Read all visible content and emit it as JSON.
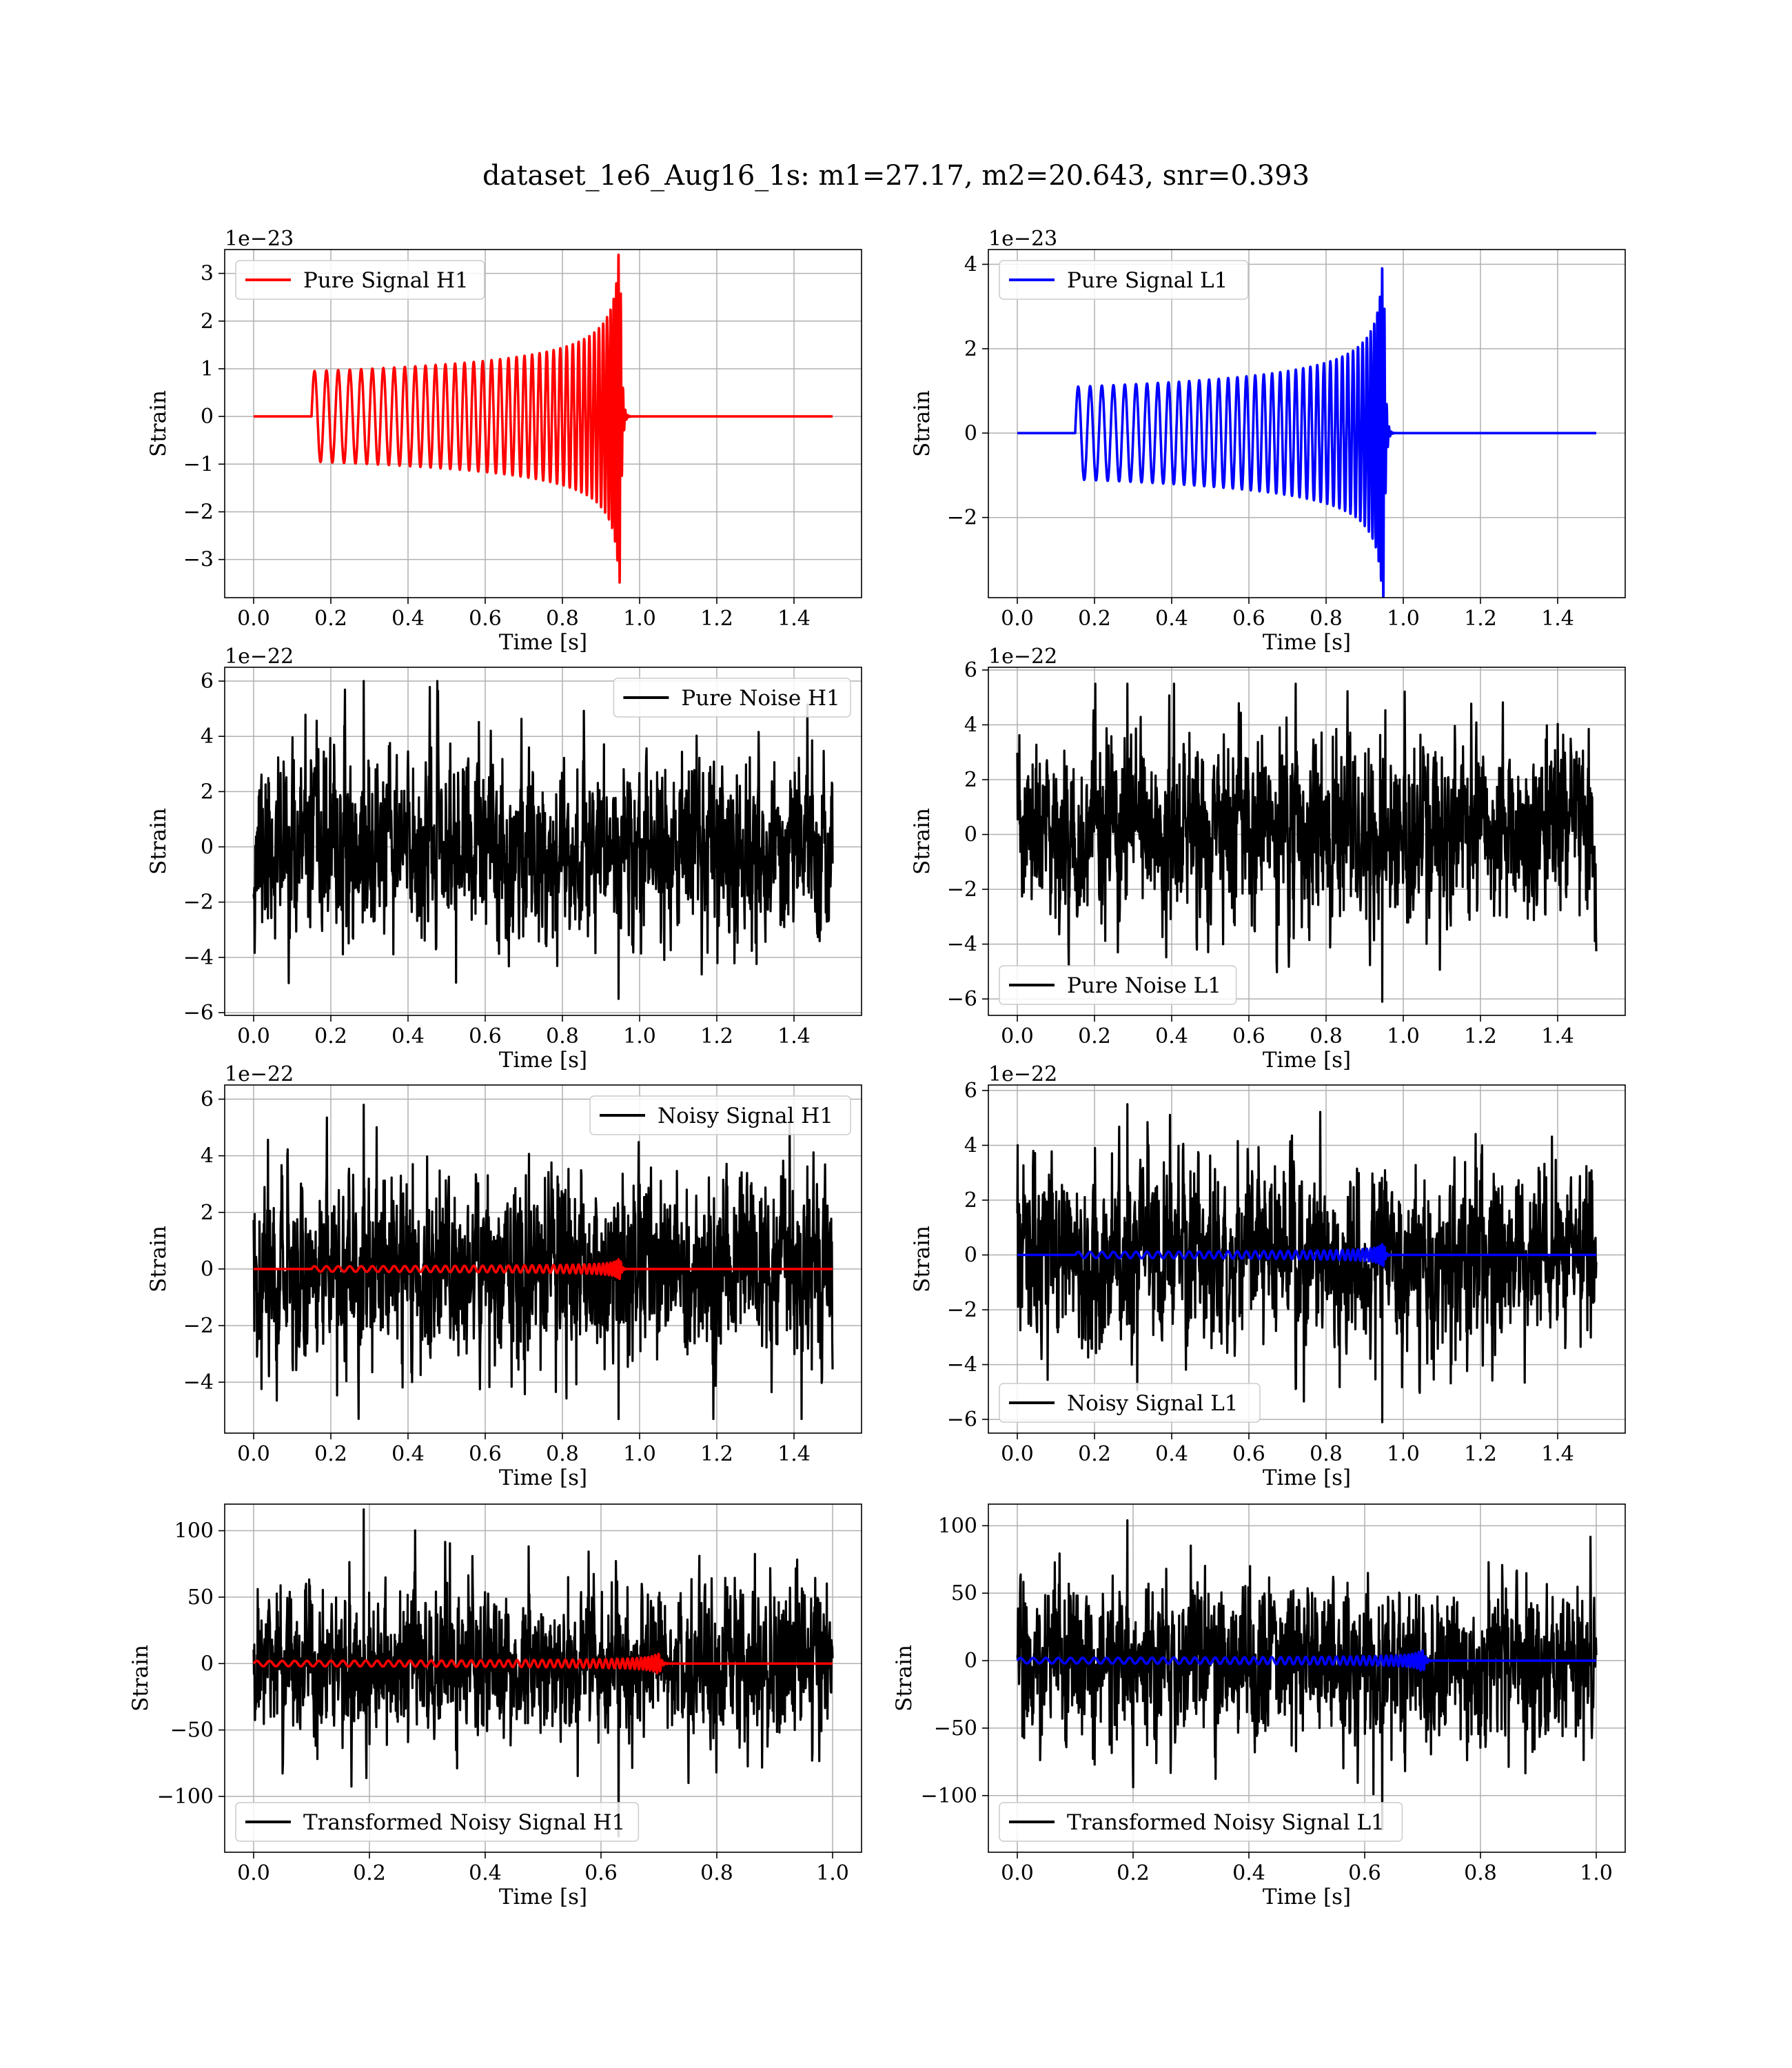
{
  "figure_title": "dataset_1e6_Aug16_1s: m1=27.17, m2=20.643, snr=0.393",
  "colors": {
    "signal_h1": "#ff0000",
    "signal_l1": "#0000ff",
    "noise": "#000000",
    "grid": "#b0b0b0"
  },
  "chart_data": [
    {
      "type": "line",
      "id": "pure-signal-h1",
      "xlabel": "Time [s]",
      "ylabel": "Strain",
      "offset_text": "1e−23",
      "xlim": [
        -0.075,
        1.575
      ],
      "ylim": [
        -3.8,
        3.5
      ],
      "xticks": [
        0.0,
        0.2,
        0.4,
        0.6,
        0.8,
        1.0,
        1.2,
        1.4
      ],
      "xtick_labels": [
        "0.0",
        "0.2",
        "0.4",
        "0.6",
        "0.8",
        "1.0",
        "1.2",
        "1.4"
      ],
      "yticks": [
        -3,
        -2,
        -1,
        0,
        1,
        2,
        3
      ],
      "ytick_labels": [
        "−3",
        "−2",
        "−1",
        "0",
        "1",
        "2",
        "3"
      ],
      "legend_position": "top-left",
      "grid": true,
      "series": [
        {
          "name": "Pure Signal H1",
          "kind": "chirp",
          "color_key": "signal_h1",
          "t_start": 0.15,
          "t_merge": 0.95,
          "t_end": 1.5,
          "amp_start": 0.95,
          "amp_peak": 3.5,
          "freq_start": 32,
          "freq_peak": 170
        }
      ]
    },
    {
      "type": "line",
      "id": "pure-signal-l1",
      "xlabel": "Time [s]",
      "ylabel": "Strain",
      "offset_text": "1e−23",
      "xlim": [
        -0.075,
        1.575
      ],
      "ylim": [
        -3.9,
        4.35
      ],
      "xticks": [
        0.0,
        0.2,
        0.4,
        0.6,
        0.8,
        1.0,
        1.2,
        1.4
      ],
      "xtick_labels": [
        "0.0",
        "0.2",
        "0.4",
        "0.6",
        "0.8",
        "1.0",
        "1.2",
        "1.4"
      ],
      "yticks": [
        -2,
        0,
        2,
        4
      ],
      "ytick_labels": [
        "−2",
        "0",
        "2",
        "4"
      ],
      "legend_position": "top-left",
      "grid": true,
      "series": [
        {
          "name": "Pure Signal L1",
          "kind": "chirp",
          "color_key": "signal_l1",
          "t_start": 0.15,
          "t_merge": 0.95,
          "t_end": 1.5,
          "amp_start": 1.1,
          "amp_peak": 4.0,
          "freq_start": 32,
          "freq_peak": 170
        }
      ]
    },
    {
      "type": "line",
      "id": "pure-noise-h1",
      "xlabel": "Time [s]",
      "ylabel": "Strain",
      "offset_text": "1e−22",
      "xlim": [
        -0.075,
        1.575
      ],
      "ylim": [
        -6.1,
        6.5
      ],
      "xticks": [
        0.0,
        0.2,
        0.4,
        0.6,
        0.8,
        1.0,
        1.2,
        1.4
      ],
      "xtick_labels": [
        "0.0",
        "0.2",
        "0.4",
        "0.6",
        "0.8",
        "1.0",
        "1.2",
        "1.4"
      ],
      "yticks": [
        -6,
        -4,
        -2,
        0,
        2,
        4,
        6
      ],
      "ytick_labels": [
        "−6",
        "−4",
        "−2",
        "0",
        "2",
        "4",
        "6"
      ],
      "legend_position": "top-right",
      "grid": true,
      "series": [
        {
          "name": "Pure Noise H1",
          "kind": "noise",
          "color_key": "noise",
          "t_start": 0.0,
          "t_end": 1.5,
          "sigma": 1.6,
          "y_min": -5.5,
          "y_max": 6.0,
          "seed": 11
        }
      ]
    },
    {
      "type": "line",
      "id": "pure-noise-l1",
      "xlabel": "Time [s]",
      "ylabel": "Strain",
      "offset_text": "1e−22",
      "xlim": [
        -0.075,
        1.575
      ],
      "ylim": [
        -6.6,
        6.1
      ],
      "xticks": [
        0.0,
        0.2,
        0.4,
        0.6,
        0.8,
        1.0,
        1.2,
        1.4
      ],
      "xtick_labels": [
        "0.0",
        "0.2",
        "0.4",
        "0.6",
        "0.8",
        "1.0",
        "1.2",
        "1.4"
      ],
      "yticks": [
        -6,
        -4,
        -2,
        0,
        2,
        4,
        6
      ],
      "ytick_labels": [
        "−6",
        "−4",
        "−2",
        "0",
        "2",
        "4",
        "6"
      ],
      "legend_position": "bottom-left",
      "grid": true,
      "series": [
        {
          "name": "Pure Noise L1",
          "kind": "noise",
          "color_key": "noise",
          "t_start": 0.0,
          "t_end": 1.5,
          "sigma": 1.6,
          "y_min": -6.1,
          "y_max": 5.5,
          "seed": 23
        }
      ]
    },
    {
      "type": "line",
      "id": "noisy-signal-h1",
      "xlabel": "Time [s]",
      "ylabel": "Strain",
      "offset_text": "1e−22",
      "xlim": [
        -0.075,
        1.575
      ],
      "ylim": [
        -5.8,
        6.5
      ],
      "xticks": [
        0.0,
        0.2,
        0.4,
        0.6,
        0.8,
        1.0,
        1.2,
        1.4
      ],
      "xtick_labels": [
        "0.0",
        "0.2",
        "0.4",
        "0.6",
        "0.8",
        "1.0",
        "1.2",
        "1.4"
      ],
      "yticks": [
        -4,
        -2,
        0,
        2,
        4,
        6
      ],
      "ytick_labels": [
        "−4",
        "−2",
        "0",
        "2",
        "4",
        "6"
      ],
      "legend_position": "top-right",
      "grid": true,
      "series": [
        {
          "name": "Noisy Signal H1",
          "kind": "noise",
          "color_key": "noise",
          "t_start": 0.0,
          "t_end": 1.5,
          "sigma": 1.6,
          "y_min": -5.3,
          "y_max": 5.8,
          "seed": 37
        },
        {
          "name": "",
          "kind": "chirp",
          "color_key": "signal_h1",
          "t_start": 0.15,
          "t_end": 1.5,
          "t_merge": 0.95,
          "amp_start": 0.095,
          "amp_peak": 0.35,
          "freq_start": 32,
          "freq_peak": 170
        }
      ]
    },
    {
      "type": "line",
      "id": "noisy-signal-l1",
      "xlabel": "Time [s]",
      "ylabel": "Strain",
      "offset_text": "1e−22",
      "xlim": [
        -0.075,
        1.575
      ],
      "ylim": [
        -6.5,
        6.2
      ],
      "xticks": [
        0.0,
        0.2,
        0.4,
        0.6,
        0.8,
        1.0,
        1.2,
        1.4
      ],
      "xtick_labels": [
        "0.0",
        "0.2",
        "0.4",
        "0.6",
        "0.8",
        "1.0",
        "1.2",
        "1.4"
      ],
      "yticks": [
        -6,
        -4,
        -2,
        0,
        2,
        4,
        6
      ],
      "ytick_labels": [
        "−6",
        "−4",
        "−2",
        "0",
        "2",
        "4",
        "6"
      ],
      "legend_position": "bottom-left",
      "grid": true,
      "series": [
        {
          "name": "Noisy Signal L1",
          "kind": "noise",
          "color_key": "noise",
          "t_start": 0.0,
          "t_end": 1.5,
          "sigma": 1.6,
          "y_min": -6.1,
          "y_max": 5.5,
          "seed": 53
        },
        {
          "name": "",
          "kind": "chirp",
          "color_key": "signal_l1",
          "t_start": 0.15,
          "t_end": 1.5,
          "t_merge": 0.95,
          "amp_start": 0.11,
          "amp_peak": 0.4,
          "freq_start": 32,
          "freq_peak": 170
        }
      ]
    },
    {
      "type": "line",
      "id": "transformed-noisy-signal-h1",
      "xlabel": "Time [s]",
      "ylabel": "Strain",
      "offset_text": "",
      "xlim": [
        -0.05,
        1.05
      ],
      "ylim": [
        -142,
        120
      ],
      "xticks": [
        0.0,
        0.2,
        0.4,
        0.6,
        0.8,
        1.0
      ],
      "xtick_labels": [
        "0.0",
        "0.2",
        "0.4",
        "0.6",
        "0.8",
        "1.0"
      ],
      "yticks": [
        -100,
        -50,
        0,
        50,
        100
      ],
      "ytick_labels": [
        "−100",
        "−50",
        "0",
        "50",
        "100"
      ],
      "legend_position": "bottom-left",
      "grid": true,
      "series": [
        {
          "name": "Transformed Noisy Signal H1",
          "kind": "noise",
          "color_key": "noise",
          "t_start": 0.0,
          "t_end": 1.0,
          "sigma": 28,
          "y_min": -130,
          "y_max": 116,
          "seed": 71
        },
        {
          "name": "",
          "kind": "chirp",
          "color_key": "signal_h1",
          "t_start": 0.0,
          "t_end": 1.0,
          "t_merge": 0.7,
          "amp_start": 2,
          "amp_peak": 10,
          "freq_start": 45,
          "freq_peak": 170
        }
      ]
    },
    {
      "type": "line",
      "id": "transformed-noisy-signal-l1",
      "xlabel": "Time [s]",
      "ylabel": "Strain",
      "offset_text": "",
      "xlim": [
        -0.05,
        1.05
      ],
      "ylim": [
        -142,
        116
      ],
      "xticks": [
        0.0,
        0.2,
        0.4,
        0.6,
        0.8,
        1.0
      ],
      "xtick_labels": [
        "0.0",
        "0.2",
        "0.4",
        "0.6",
        "0.8",
        "1.0"
      ],
      "yticks": [
        -100,
        -50,
        0,
        50,
        100
      ],
      "ytick_labels": [
        "−100",
        "−50",
        "0",
        "50",
        "100"
      ],
      "legend_position": "bottom-left",
      "grid": true,
      "series": [
        {
          "name": "Transformed Noisy Signal L1",
          "kind": "noise",
          "color_key": "noise",
          "t_start": 0.0,
          "t_end": 1.0,
          "sigma": 28,
          "y_min": -125,
          "y_max": 104,
          "seed": 89
        },
        {
          "name": "",
          "kind": "chirp",
          "color_key": "signal_l1",
          "t_start": 0.0,
          "t_end": 1.0,
          "t_merge": 0.7,
          "amp_start": 2,
          "amp_peak": 12,
          "freq_start": 45,
          "freq_peak": 170
        }
      ]
    }
  ]
}
